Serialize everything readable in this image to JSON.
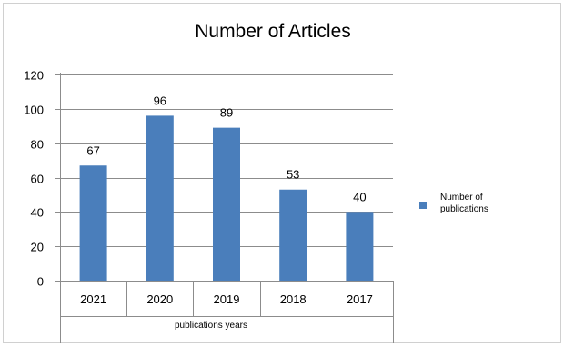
{
  "chart_data": {
    "type": "bar",
    "title": "Number of Articles",
    "xlabel": "publications years",
    "ylabel": "",
    "categories": [
      "2021",
      "2020",
      "2019",
      "2018",
      "2017"
    ],
    "series": [
      {
        "name": "Number of publications",
        "values": [
          67,
          96,
          89,
          53,
          40
        ],
        "color": "#4a7ebb"
      }
    ],
    "ylim": [
      0,
      120
    ],
    "yticks": [
      0,
      20,
      40,
      60,
      80,
      100,
      120
    ],
    "data_labels": [
      "67",
      "96",
      "89",
      "53",
      "40"
    ],
    "legend_lines": [
      "Number of",
      "publications"
    ],
    "legend_position": "right",
    "grid": true
  }
}
